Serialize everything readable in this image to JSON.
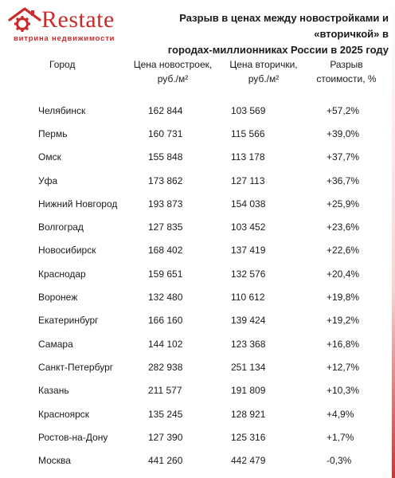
{
  "logo": {
    "word": "Restate",
    "tagline": "витрина недвижимости"
  },
  "title_lines": [
    "Разрыв в ценах между новостройками и «вторичкой» в",
    "городах-миллионниках России в 2025 году"
  ],
  "table": {
    "headers": {
      "city": "Город",
      "new_line1": "Цена новостроек,",
      "new_line2": "руб./м²",
      "sec_line1": "Цена вторички,",
      "sec_line2": "руб./м²",
      "gap_line1": "Разрыв",
      "gap_line2": "стоимости, %"
    },
    "rows": [
      {
        "city": "Челябинск",
        "new": "162 844",
        "sec": "103 569",
        "gap": "+57,2%"
      },
      {
        "city": "Пермь",
        "new": "160 731",
        "sec": "115 566",
        "gap": "+39,0%"
      },
      {
        "city": "Омск",
        "new": "155 848",
        "sec": "113 178",
        "gap": "+37,7%"
      },
      {
        "city": "Уфа",
        "new": "173 862",
        "sec": "127 113",
        "gap": "+36,7%"
      },
      {
        "city": "Нижний Новгород",
        "new": "193 873",
        "sec": "154 038",
        "gap": "+25,9%"
      },
      {
        "city": "Волгоград",
        "new": "127 835",
        "sec": "103 452",
        "gap": "+23,6%"
      },
      {
        "city": "Новосибирск",
        "new": "168 402",
        "sec": "137 419",
        "gap": "+22,6%"
      },
      {
        "city": "Краснодар",
        "new": "159 651",
        "sec": "132 576",
        "gap": "+20,4%"
      },
      {
        "city": "Воронеж",
        "new": "132 480",
        "sec": "110 612",
        "gap": "+19,8%"
      },
      {
        "city": "Екатеринбург",
        "new": "166 160",
        "sec": "139 424",
        "gap": "+19,2%"
      },
      {
        "city": "Самара",
        "new": "144 102",
        "sec": "123 368",
        "gap": "+16,8%"
      },
      {
        "city": "Санкт-Петербург",
        "new": "282 938",
        "sec": "251 134",
        "gap": "+12,7%"
      },
      {
        "city": "Казань",
        "new": "211 577",
        "sec": "191 809",
        "gap": "+10,3%"
      },
      {
        "city": "Красноярск",
        "new": "135 245",
        "sec": "128 921",
        "gap": "+4,9%"
      },
      {
        "city": "Ростов-на-Дону",
        "new": "127 390",
        "sec": "125 316",
        "gap": "+1,7%"
      },
      {
        "city": "Москва",
        "new": "441 260",
        "sec": "442 479",
        "gap": "-0,3%"
      }
    ]
  },
  "colors": {
    "brand_red": "#cc2a2a",
    "text": "#1a1a1a"
  },
  "icons": {
    "logo_mark": "house-gear-icon"
  }
}
